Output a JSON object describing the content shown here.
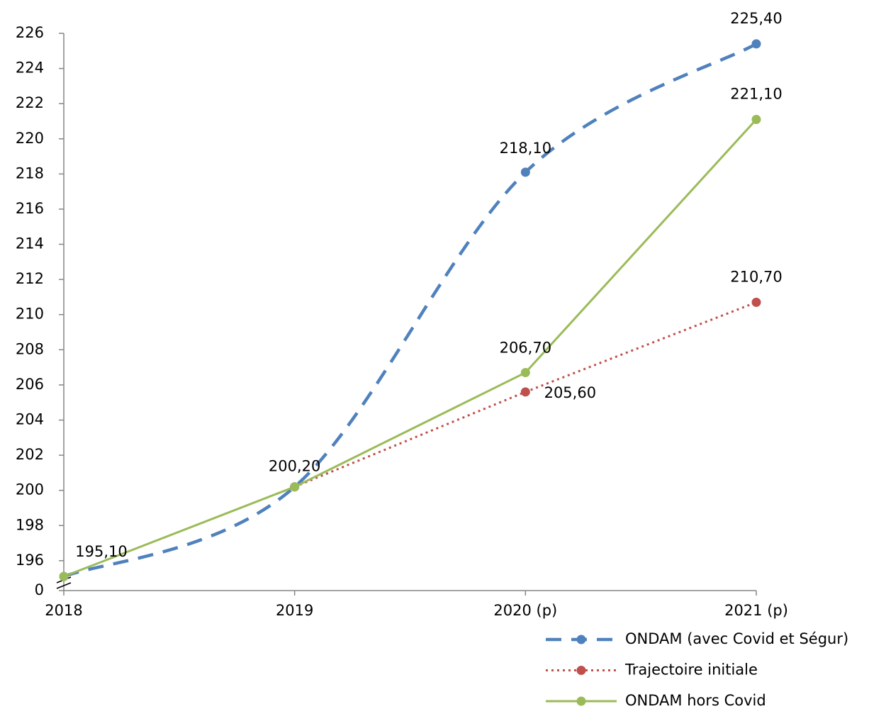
{
  "chart_data": {
    "type": "line",
    "categories": [
      "2018",
      "2019",
      "2020 (p)",
      "2021 (p)"
    ],
    "series": [
      {
        "name": "ONDAM (avec Covid et Ségur)",
        "color": "#4f81bd",
        "dash": "dashed",
        "smooth": true,
        "values": [
          195.1,
          200.2,
          218.1,
          225.4
        ],
        "value_labels": [
          null,
          null,
          "218,10",
          "225,40"
        ]
      },
      {
        "name": "Trajectoire initiale",
        "color": "#c0504d",
        "dash": "dotted",
        "smooth": false,
        "values": [
          null,
          200.2,
          205.6,
          210.7
        ],
        "value_labels": [
          null,
          null,
          "205,60",
          "210,70"
        ]
      },
      {
        "name": "ONDAM hors Covid",
        "color": "#9bbb59",
        "dash": "solid",
        "smooth": false,
        "values": [
          195.1,
          200.2,
          206.7,
          221.1
        ],
        "value_labels": [
          "195,10",
          "200,20",
          "206,70",
          "221,10"
        ]
      }
    ],
    "ylim": [
      194.3,
      226
    ],
    "axis_break": true,
    "yticks": [
      0,
      196,
      198,
      200,
      202,
      204,
      206,
      208,
      210,
      212,
      214,
      216,
      218,
      220,
      222,
      224,
      226
    ],
    "grid": false
  }
}
